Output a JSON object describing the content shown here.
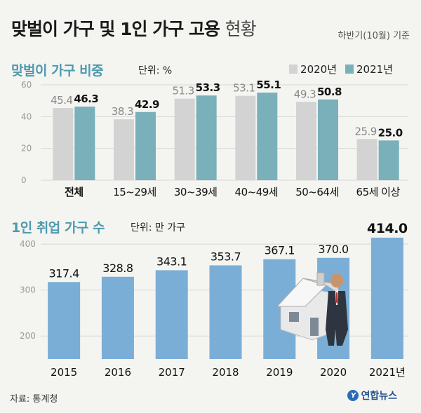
{
  "header": {
    "title_bold": "맞벌이 가구 및 1인 가구 고용",
    "title_light": "현황",
    "note": "하반기(10월) 기준"
  },
  "colors": {
    "grey": "#d3d3d3",
    "teal": "#7ab0b9",
    "blue": "#7aaed6",
    "title_teal": "#4e9aae"
  },
  "chart_data": [
    {
      "type": "bar",
      "title": "맞벌이 가구 비중",
      "unit": "단위: %",
      "categories": [
        "전체",
        "15~29세",
        "30~39세",
        "40~49세",
        "50~64세",
        "65세 이상"
      ],
      "series": [
        {
          "name": "2020년",
          "values": [
            45.4,
            38.3,
            51.3,
            53.1,
            49.3,
            25.9
          ]
        },
        {
          "name": "2021년",
          "values": [
            46.3,
            42.9,
            53.3,
            55.1,
            50.8,
            25.0
          ]
        }
      ],
      "ylim": [
        0,
        60
      ],
      "yticks": [
        0,
        20,
        40,
        60
      ],
      "legend": "top-right",
      "grid": true
    },
    {
      "type": "bar",
      "title": "1인 취업 가구 수",
      "unit": "단위: 만 가구",
      "categories": [
        "2015",
        "2016",
        "2017",
        "2018",
        "2019",
        "2020",
        "2021년"
      ],
      "values": [
        317.4,
        328.8,
        343.1,
        353.7,
        367.1,
        370.0,
        414.0
      ],
      "labels": [
        "317.4",
        "328.8",
        "343.1",
        "353.7",
        "367.1",
        "370.0",
        "414.0"
      ],
      "ylim": [
        150,
        420
      ],
      "yticks": [
        200,
        300,
        400
      ],
      "grid": true
    }
  ],
  "footer": {
    "source": "자료: 통계청",
    "logo": "연합뉴스",
    "logo_mark": "Y"
  }
}
